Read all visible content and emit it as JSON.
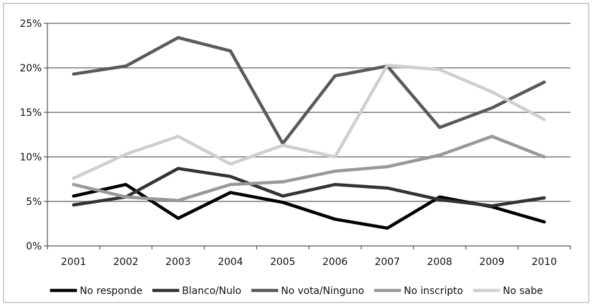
{
  "chart_data": {
    "type": "line",
    "title": "",
    "xlabel": "",
    "ylabel": "",
    "categories": [
      "2001",
      "2002",
      "2003",
      "2004",
      "2005",
      "2006",
      "2007",
      "2008",
      "2009",
      "2010"
    ],
    "ylim": [
      0,
      25
    ],
    "yticks": [
      0,
      5,
      10,
      15,
      20,
      25
    ],
    "ytick_labels": [
      "0%",
      "5%",
      "10%",
      "15%",
      "20%",
      "25%"
    ],
    "grid": true,
    "legend_position": "bottom",
    "series": [
      {
        "name": "No responde",
        "color": "#000000",
        "values": [
          5.6,
          6.9,
          3.1,
          6.0,
          4.9,
          3.0,
          2.0,
          5.5,
          4.4,
          2.7
        ]
      },
      {
        "name": "Blanco/Nulo",
        "color": "#333333",
        "values": [
          4.6,
          5.5,
          8.7,
          7.8,
          5.6,
          6.9,
          6.5,
          5.2,
          4.5,
          5.4
        ]
      },
      {
        "name": "No vota/Ninguno",
        "color": "#5a5a5a",
        "values": [
          19.3,
          20.2,
          23.4,
          21.9,
          11.5,
          19.1,
          20.2,
          13.3,
          15.5,
          18.4
        ]
      },
      {
        "name": "No inscripto",
        "color": "#999999",
        "values": [
          6.9,
          5.5,
          5.1,
          6.9,
          7.2,
          8.4,
          8.9,
          10.2,
          12.3,
          10.0
        ]
      },
      {
        "name": "No sabe",
        "color": "#cfcfcf",
        "values": [
          7.6,
          10.3,
          12.3,
          9.2,
          11.3,
          10.0,
          20.3,
          19.8,
          17.3,
          14.2
        ]
      }
    ]
  }
}
